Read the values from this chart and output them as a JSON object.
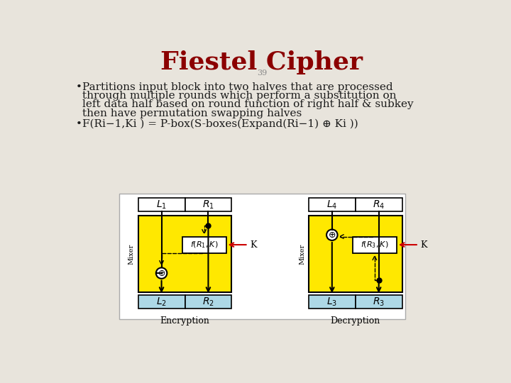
{
  "title": "Fiestel Cipher",
  "title_color": "#8B0000",
  "title_fontsize": 26,
  "slide_number": "39",
  "background_color": "#E8E4DC",
  "bullet1_line1": "Partitions input block into two halves that are processed",
  "bullet1_line2": "through multiple rounds which perform a substitution on",
  "bullet1_line3": "left data half based on round function of right half & subkey",
  "bullet1_line4": "then have permutation swapping halves",
  "bullet2": "F(Ri−1,Ki ) = P-box(S-boxes(Expand(Ri−1) ⊕ Ki ))",
  "text_color": "#1a1a1a",
  "text_fontsize": 11,
  "yellow_color": "#FFE800",
  "light_blue_color": "#ADD8E6",
  "white_color": "#FFFFFF",
  "black_color": "#000000",
  "red_color": "#CC0000",
  "gray_color": "#888888"
}
